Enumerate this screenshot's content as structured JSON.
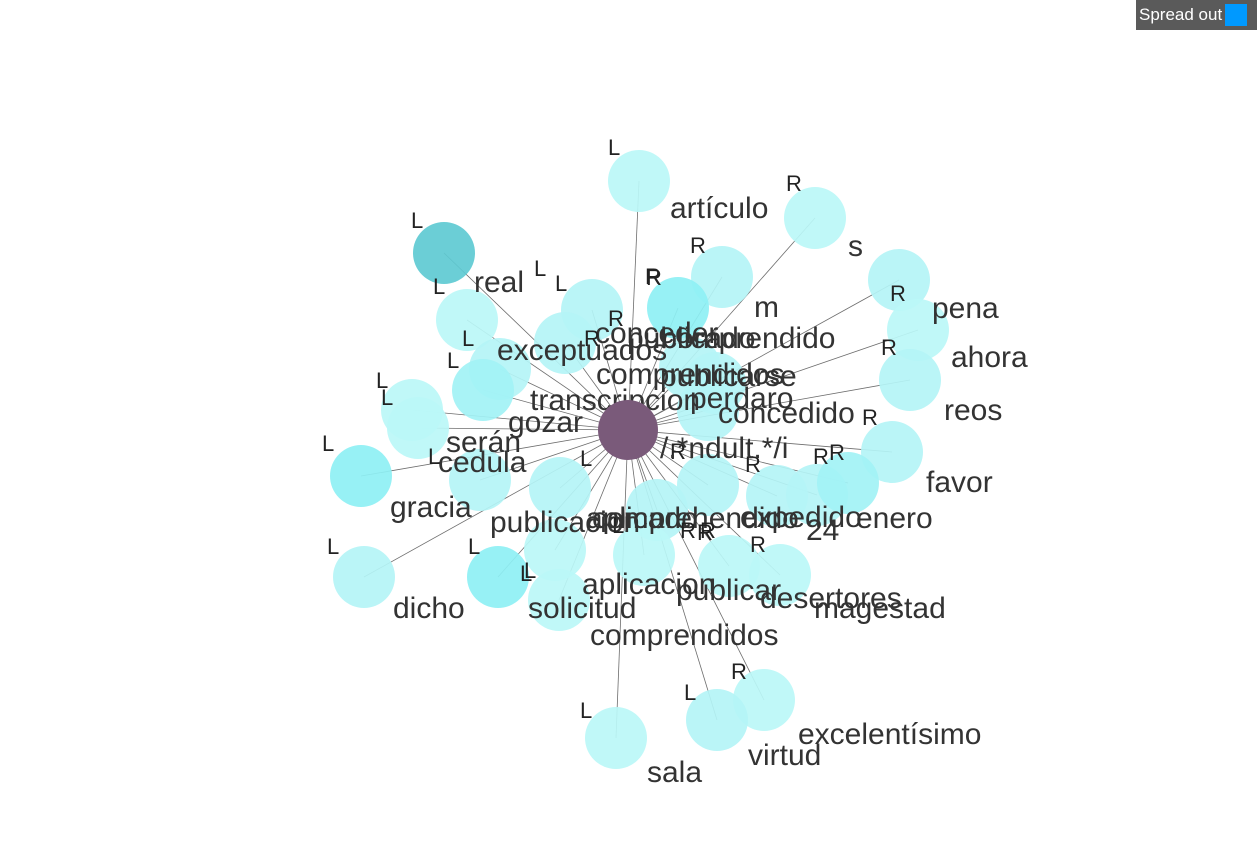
{
  "toolbar": {
    "spread_label": "Spread out",
    "spread_color": "#0099ff"
  },
  "graph": {
    "center_color": "#7a5a7a",
    "center_label": "/.*ndult.*/i",
    "nodes": [
      {
        "word": "artículo",
        "side": "L",
        "color": "#bbf7f7"
      },
      {
        "word": "s",
        "side": "R",
        "color": "#bbf7f7"
      },
      {
        "word": "real",
        "side": "L",
        "color": "#5ecad2"
      },
      {
        "word": "pena",
        "side": "R",
        "color": "#b4f4f6"
      },
      {
        "word": "m",
        "side": "R",
        "color": "#b4f4f6"
      },
      {
        "word": "ahora",
        "side": "R",
        "color": "#bbf7f7"
      },
      {
        "word": "exceptuados",
        "side": "L",
        "color": "#bbf7f7"
      },
      {
        "word": "conceder",
        "side": "L",
        "color": "#b4f4f6"
      },
      {
        "word": "comprendido",
        "side": "R",
        "color": "#8ef0f4"
      },
      {
        "word": "publicado",
        "side": "L",
        "color": "#b4f4f6"
      },
      {
        "word": "reos",
        "side": "R",
        "color": "#b4f4f6"
      },
      {
        "word": "comprendidos",
        "side": "L",
        "color": "#b4f4f6"
      },
      {
        "word": "publicarse",
        "side": "R",
        "color": "#b4f4f6"
      },
      {
        "word": "transcripcion",
        "side": "L",
        "color": "#a2f2f5"
      },
      {
        "word": "perdaro",
        "side": "R",
        "color": "#b4f4f6"
      },
      {
        "word": "concedido",
        "side": "R",
        "color": "#b4f4f6"
      },
      {
        "word": "gozar",
        "side": "L",
        "color": "#bbf7f7"
      },
      {
        "word": "serán",
        "side": "L",
        "color": "#bbf7f7"
      },
      {
        "word": "cedula",
        "side": "L",
        "color": "#b4f4f6"
      },
      {
        "word": "favor",
        "side": "R",
        "color": "#b4f4f6"
      },
      {
        "word": "gracia",
        "side": "L",
        "color": "#8ef0f4"
      },
      {
        "word": "publicacion",
        "side": "L",
        "color": "#b4f4f6"
      },
      {
        "word": "aplicado",
        "side": "L",
        "color": "#b4f4f6"
      },
      {
        "word": "comprehendido",
        "side": "R",
        "color": "#b4f4f6"
      },
      {
        "word": "expedido",
        "side": "R",
        "color": "#b4f4f6"
      },
      {
        "word": "24",
        "side": "R",
        "color": "#b4f4f6"
      },
      {
        "word": "enero",
        "side": "R",
        "color": "#a2f2f5"
      },
      {
        "word": "dicho",
        "side": "L",
        "color": "#b4f4f6"
      },
      {
        "word": "solicitud",
        "side": "L",
        "color": "#8ef0f4"
      },
      {
        "word": "aplicacion",
        "side": "L",
        "color": "#bbf7f7"
      },
      {
        "word": "publicar",
        "side": "R",
        "color": "#bbf7f7"
      },
      {
        "word": "desertores",
        "side": "R",
        "color": "#bbf7f7"
      },
      {
        "word": "magestad",
        "side": "R",
        "color": "#bbf7f7"
      },
      {
        "word": "comprendidos",
        "side": "L",
        "color": "#bbf7f7"
      },
      {
        "word": "excelentísimo",
        "side": "R",
        "color": "#bbf7f7"
      },
      {
        "word": "virtud",
        "side": "L",
        "color": "#b4f4f6"
      },
      {
        "word": "sala",
        "side": "L",
        "color": "#bbf7f7"
      }
    ]
  }
}
